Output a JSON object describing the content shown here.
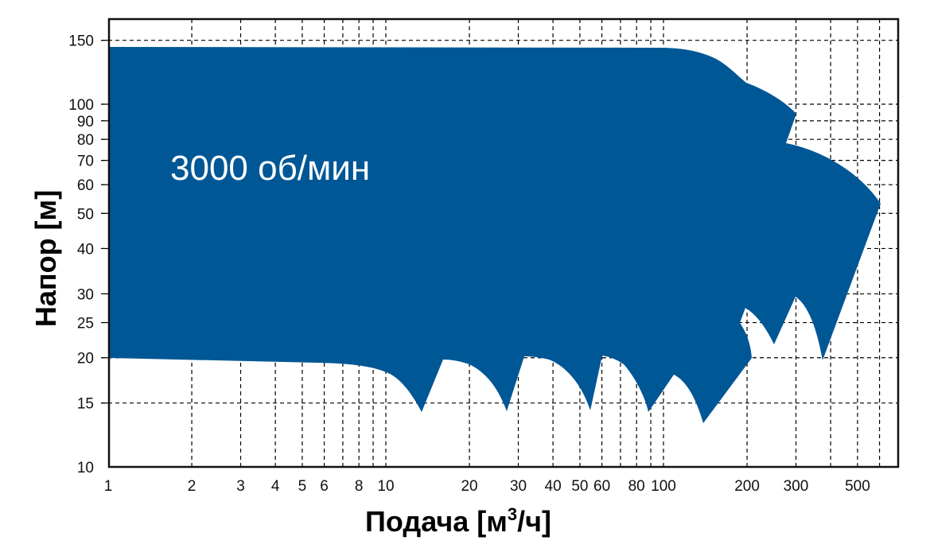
{
  "chart_data": {
    "type": "area",
    "title": "",
    "annotation": "3000 об/мин",
    "xlabel": "Подача [м³/ч]",
    "xlabel_base": "Подача [м",
    "xlabel_sup": "3",
    "xlabel_tail": "/ч]",
    "ylabel": "Напор [м]",
    "xscale": "log",
    "yscale": "log",
    "xlim": [
      1,
      700
    ],
    "ylim": [
      10,
      170
    ],
    "grid": true,
    "fill_color": "#005796",
    "x_ticks": [
      {
        "value": 1,
        "label": "1"
      },
      {
        "value": 2,
        "label": "2"
      },
      {
        "value": 3,
        "label": "3"
      },
      {
        "value": 4,
        "label": "4"
      },
      {
        "value": 5,
        "label": "5"
      },
      {
        "value": 6,
        "label": "6"
      },
      {
        "value": 8,
        "label": "8"
      },
      {
        "value": 10,
        "label": "10"
      },
      {
        "value": 20,
        "label": "20"
      },
      {
        "value": 30,
        "label": "30"
      },
      {
        "value": 40,
        "label": "40"
      },
      {
        "value": 50,
        "label": "50"
      },
      {
        "value": 60,
        "label": "60"
      },
      {
        "value": 80,
        "label": "80"
      },
      {
        "value": 100,
        "label": "100"
      },
      {
        "value": 200,
        "label": "200"
      },
      {
        "value": 300,
        "label": "300"
      },
      {
        "value": 500,
        "label": "500"
      }
    ],
    "x_gridlines": [
      2,
      3,
      4,
      5,
      6,
      7,
      8,
      9,
      10,
      20,
      30,
      40,
      50,
      60,
      70,
      80,
      90,
      100,
      200,
      300,
      400,
      500,
      600
    ],
    "y_ticks": [
      {
        "value": 10,
        "label": "10"
      },
      {
        "value": 15,
        "label": "15"
      },
      {
        "value": 20,
        "label": "20"
      },
      {
        "value": 25,
        "label": "25"
      },
      {
        "value": 30,
        "label": "30"
      },
      {
        "value": 40,
        "label": "40"
      },
      {
        "value": 50,
        "label": "50"
      },
      {
        "value": 60,
        "label": "60"
      },
      {
        "value": 70,
        "label": "70"
      },
      {
        "value": 80,
        "label": "80"
      },
      {
        "value": 90,
        "label": "90"
      },
      {
        "value": 100,
        "label": "100"
      },
      {
        "value": 150,
        "label": "150"
      }
    ],
    "y_gridlines": [
      15,
      20,
      25,
      30,
      40,
      50,
      60,
      70,
      80,
      90,
      100,
      150
    ],
    "envelope": {
      "description": "Operating range envelope of pump series at 3000 rpm (flow Q in m3/h vs head H in m)",
      "upper_boundary": [
        {
          "x": 1,
          "y": 145
        },
        {
          "x": 100,
          "y": 144
        },
        {
          "x": 150,
          "y": 138
        },
        {
          "x": 200,
          "y": 118
        },
        {
          "x": 300,
          "y": 96
        },
        {
          "x": 270,
          "y": 79
        },
        {
          "x": 400,
          "y": 70
        },
        {
          "x": 620,
          "y": 54
        }
      ],
      "lower_boundary": [
        {
          "x": 1,
          "y": 20
        },
        {
          "x": 10,
          "y": 19.5
        },
        {
          "x": 14,
          "y": 14.2
        },
        {
          "x": 17,
          "y": 20
        },
        {
          "x": 27,
          "y": 14.3
        },
        {
          "x": 31,
          "y": 20.3
        },
        {
          "x": 54,
          "y": 14.4
        },
        {
          "x": 60,
          "y": 20.5
        },
        {
          "x": 88,
          "y": 14.2
        },
        {
          "x": 108,
          "y": 18
        },
        {
          "x": 140,
          "y": 13.5
        },
        {
          "x": 205,
          "y": 20
        },
        {
          "x": 195,
          "y": 25
        },
        {
          "x": 205,
          "y": 27.5
        },
        {
          "x": 255,
          "y": 22
        },
        {
          "x": 305,
          "y": 29.5
        },
        {
          "x": 380,
          "y": 19.5
        },
        {
          "x": 620,
          "y": 54
        }
      ]
    }
  }
}
